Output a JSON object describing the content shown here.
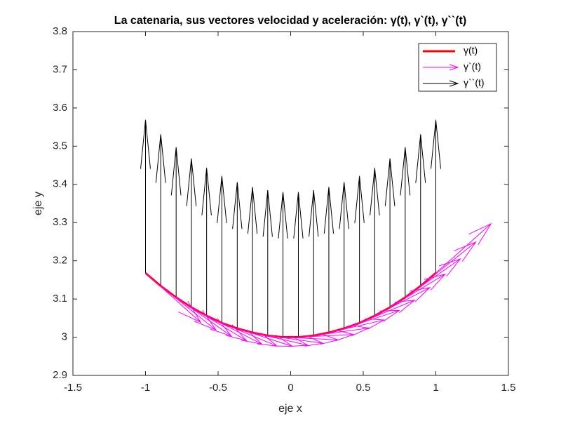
{
  "chart_data": {
    "type": "quiver",
    "title": "La catenaria, sus vectores velocidad y aceleración: γ(t), γ`(t), γ``(t)",
    "xlabel": "eje x",
    "ylabel": "eje y",
    "xlim": [
      -1.5,
      1.5
    ],
    "xticks": [
      -1.5,
      -1,
      -0.5,
      0,
      0.5,
      1,
      1.5
    ],
    "ylim": [
      2.9,
      3.8
    ],
    "yticks": [
      2.9,
      3,
      3.1,
      3.2,
      3.3,
      3.4,
      3.5,
      3.6,
      3.7,
      3.8
    ],
    "legend": "upper right",
    "x": [
      -1,
      -0.895,
      -0.789,
      -0.684,
      -0.579,
      -0.474,
      -0.368,
      -0.263,
      -0.158,
      -0.053,
      0.053,
      0.158,
      0.263,
      0.368,
      0.474,
      0.579,
      0.684,
      0.789,
      0.895,
      1
    ],
    "series": [
      {
        "name": "γ(t)",
        "color": "#ff0000",
        "values": [
          3.168,
          3.134,
          3.104,
          3.078,
          3.056,
          3.037,
          3.023,
          3.012,
          3.004,
          3.0,
          3.0,
          3.004,
          3.012,
          3.023,
          3.037,
          3.056,
          3.078,
          3.104,
          3.134,
          3.168
        ]
      },
      {
        "name": "γ`(t)",
        "color": "#ff00ff",
        "u": [
          0.38,
          0.38,
          0.38,
          0.38,
          0.38,
          0.38,
          0.38,
          0.38,
          0.38,
          0.38,
          0.38,
          0.38,
          0.38,
          0.38,
          0.38,
          0.38,
          0.38,
          0.38,
          0.38,
          0.38
        ],
        "v": [
          -0.129,
          -0.115,
          -0.101,
          -0.087,
          -0.074,
          -0.06,
          -0.047,
          -0.033,
          -0.02,
          -0.007,
          0.007,
          0.02,
          0.033,
          0.047,
          0.06,
          0.074,
          0.087,
          0.101,
          0.115,
          0.129
        ]
      },
      {
        "name": "γ``(t)",
        "color": "#000000",
        "u": [
          0,
          0,
          0,
          0,
          0,
          0,
          0,
          0,
          0,
          0,
          0,
          0,
          0,
          0,
          0,
          0,
          0,
          0,
          0,
          0
        ],
        "v": [
          0.401,
          0.397,
          0.393,
          0.39,
          0.387,
          0.385,
          0.383,
          0.381,
          0.381,
          0.38,
          0.38,
          0.381,
          0.381,
          0.383,
          0.385,
          0.387,
          0.39,
          0.393,
          0.397,
          0.401
        ]
      }
    ]
  }
}
